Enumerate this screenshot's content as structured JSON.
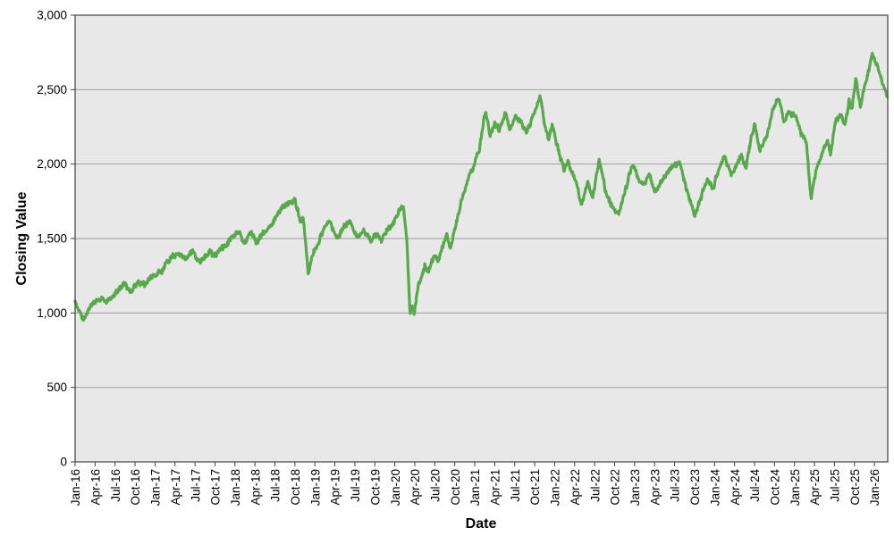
{
  "chart_data": {
    "type": "line",
    "title": "",
    "xlabel": "Date",
    "ylabel": "Closing Value",
    "series": [
      {
        "name": "Closing Value",
        "note": "daily closing values Jan-2016 through early 2026; keypoints are [months_since_Jan_2016, value] anchors of the noisy daily line",
        "keypoints": [
          [
            0,
            1080
          ],
          [
            0.5,
            1020
          ],
          [
            1.3,
            955
          ],
          [
            2,
            1010
          ],
          [
            3,
            1070
          ],
          [
            4,
            1105
          ],
          [
            4.7,
            1060
          ],
          [
            5.5,
            1110
          ],
          [
            6.5,
            1155
          ],
          [
            7.5,
            1200
          ],
          [
            8.3,
            1130
          ],
          [
            9.5,
            1210
          ],
          [
            10.5,
            1185
          ],
          [
            11,
            1230
          ],
          [
            12,
            1255
          ],
          [
            13,
            1275
          ],
          [
            14.5,
            1380
          ],
          [
            15.5,
            1395
          ],
          [
            16.5,
            1360
          ],
          [
            17.5,
            1415
          ],
          [
            18.8,
            1340
          ],
          [
            20,
            1405
          ],
          [
            21,
            1385
          ],
          [
            22,
            1440
          ],
          [
            23,
            1470
          ],
          [
            24,
            1530
          ],
          [
            24.7,
            1562
          ],
          [
            25.4,
            1452
          ],
          [
            26.3,
            1555
          ],
          [
            27.2,
            1480
          ],
          [
            28,
            1520
          ],
          [
            29,
            1565
          ],
          [
            30,
            1635
          ],
          [
            31,
            1700
          ],
          [
            32,
            1735
          ],
          [
            33,
            1758
          ],
          [
            33.8,
            1610
          ],
          [
            34.2,
            1655
          ],
          [
            34.7,
            1430
          ],
          [
            35.0,
            1262
          ],
          [
            35.6,
            1390
          ],
          [
            36.3,
            1450
          ],
          [
            37.3,
            1560
          ],
          [
            38.3,
            1618
          ],
          [
            39.3,
            1500
          ],
          [
            40.3,
            1572
          ],
          [
            41.3,
            1618
          ],
          [
            42.3,
            1502
          ],
          [
            43.3,
            1560
          ],
          [
            44.3,
            1482
          ],
          [
            45.3,
            1528
          ],
          [
            46,
            1492
          ],
          [
            47,
            1562
          ],
          [
            48,
            1625
          ],
          [
            48.8,
            1702
          ],
          [
            49.3,
            1722
          ],
          [
            49.8,
            1500
          ],
          [
            50.3,
            984
          ],
          [
            50.6,
            1060
          ],
          [
            50.9,
            995
          ],
          [
            51.5,
            1180
          ],
          [
            52.5,
            1312
          ],
          [
            53,
            1282
          ],
          [
            54,
            1392
          ],
          [
            54.5,
            1350
          ],
          [
            55.3,
            1462
          ],
          [
            55.8,
            1525
          ],
          [
            56.3,
            1442
          ],
          [
            57,
            1560
          ],
          [
            58,
            1755
          ],
          [
            59,
            1905
          ],
          [
            60,
            2005
          ],
          [
            60.7,
            2105
          ],
          [
            61.6,
            2368
          ],
          [
            62.3,
            2185
          ],
          [
            63,
            2285
          ],
          [
            63.7,
            2225
          ],
          [
            64.5,
            2352
          ],
          [
            65.2,
            2232
          ],
          [
            66,
            2322
          ],
          [
            67,
            2282
          ],
          [
            67.7,
            2205
          ],
          [
            68.5,
            2285
          ],
          [
            69.3,
            2380
          ],
          [
            69.8,
            2468
          ],
          [
            70.5,
            2255
          ],
          [
            71.1,
            2162
          ],
          [
            71.6,
            2262
          ],
          [
            72.5,
            2105
          ],
          [
            73.4,
            1962
          ],
          [
            74,
            2022
          ],
          [
            75,
            1905
          ],
          [
            76,
            1725
          ],
          [
            77,
            1862
          ],
          [
            77.7,
            1775
          ],
          [
            78.7,
            2030
          ],
          [
            79.7,
            1810
          ],
          [
            80.7,
            1705
          ],
          [
            81.7,
            1662
          ],
          [
            82.5,
            1805
          ],
          [
            83.7,
            2000
          ],
          [
            84.5,
            1905
          ],
          [
            85.4,
            1852
          ],
          [
            86.2,
            1942
          ],
          [
            87,
            1802
          ],
          [
            88,
            1880
          ],
          [
            89,
            1950
          ],
          [
            90.7,
            2020
          ],
          [
            91.7,
            1850
          ],
          [
            93,
            1648
          ],
          [
            94,
            1782
          ],
          [
            95,
            1902
          ],
          [
            95.7,
            1832
          ],
          [
            96.5,
            1952
          ],
          [
            97.5,
            2048
          ],
          [
            98.5,
            1932
          ],
          [
            99.5,
            2010
          ],
          [
            100,
            2060
          ],
          [
            100.7,
            1982
          ],
          [
            102,
            2278
          ],
          [
            102.8,
            2092
          ],
          [
            103.9,
            2198
          ],
          [
            104.7,
            2352
          ],
          [
            105.5,
            2452
          ],
          [
            106.4,
            2282
          ],
          [
            107,
            2352
          ],
          [
            108.2,
            2322
          ],
          [
            109,
            2205
          ],
          [
            109.8,
            2148
          ],
          [
            110.5,
            1762
          ],
          [
            111.2,
            1952
          ],
          [
            112,
            2052
          ],
          [
            112.9,
            2148
          ],
          [
            113.4,
            2082
          ],
          [
            114.2,
            2282
          ],
          [
            115,
            2332
          ],
          [
            115.6,
            2252
          ],
          [
            116.2,
            2432
          ],
          [
            116.6,
            2382
          ],
          [
            117.2,
            2562
          ],
          [
            117.9,
            2392
          ],
          [
            118.7,
            2552
          ],
          [
            119.3,
            2652
          ],
          [
            119.6,
            2732
          ],
          [
            120.2,
            2682
          ],
          [
            120.9,
            2602
          ],
          [
            121.5,
            2502
          ],
          [
            122,
            2445
          ]
        ]
      }
    ],
    "x_tick_labels": [
      "Jan-16",
      "Apr-16",
      "Jul-16",
      "Oct-16",
      "Jan-17",
      "Apr-17",
      "Jul-17",
      "Oct-17",
      "Jan-18",
      "Apr-18",
      "Jul-18",
      "Oct-18",
      "Jan-19",
      "Apr-19",
      "Jul-19",
      "Oct-19",
      "Jan-20",
      "Apr-20",
      "Jul-20",
      "Oct-20",
      "Jan-21",
      "Apr-21",
      "Jul-21",
      "Oct-21",
      "Jan-22",
      "Apr-22",
      "Jul-22",
      "Oct-22",
      "Jan-23",
      "Apr-23",
      "Jul-23",
      "Oct-23",
      "Jan-24",
      "Apr-24",
      "Jul-24",
      "Oct-24",
      "Jan-25",
      "Apr-25",
      "Jul-25",
      "Oct-25",
      "Jan-26"
    ],
    "x_tick_months": [
      0,
      3,
      6,
      9,
      12,
      15,
      18,
      21,
      24,
      27,
      30,
      33,
      36,
      39,
      42,
      45,
      48,
      51,
      54,
      57,
      60,
      63,
      66,
      69,
      72,
      75,
      78,
      81,
      84,
      87,
      90,
      93,
      96,
      99,
      102,
      105,
      108,
      111,
      114,
      117,
      120
    ],
    "xlim_months": [
      0,
      122
    ],
    "y_tick_labels": [
      "0",
      "500",
      "1,000",
      "1,500",
      "2,000",
      "2,500",
      "3,000"
    ],
    "y_tick_values": [
      0,
      500,
      1000,
      1500,
      2000,
      2500,
      3000
    ],
    "ylim": [
      0,
      3000
    ],
    "grid": "horizontal-only",
    "legend": "none",
    "colors": {
      "line": "#58a84c",
      "plot_background": "#e8e8e8",
      "gridline": "#9c9c9c",
      "plot_border": "#404040",
      "tick": "#404040",
      "text": "#000000",
      "page_background": "#ffffff"
    },
    "render": {
      "plot_left": 84,
      "plot_top": 17,
      "plot_right": 993,
      "plot_bottom": 517,
      "line_width": 3.2,
      "noise_amplitude": 22,
      "noise_seed": 9,
      "sample_step_months": 0.07,
      "tick_font_size": 13.5
    }
  }
}
